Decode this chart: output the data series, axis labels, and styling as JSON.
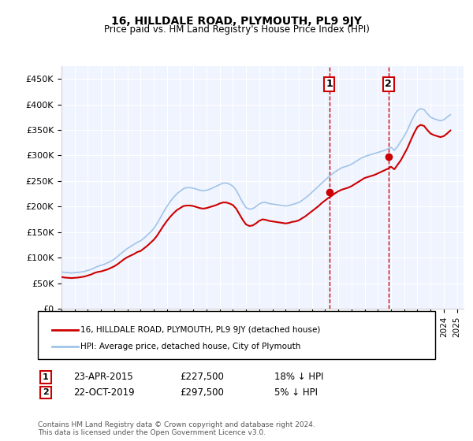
{
  "title": "16, HILLDALE ROAD, PLYMOUTH, PL9 9JY",
  "subtitle": "Price paid vs. HM Land Registry's House Price Index (HPI)",
  "ylabel_ticks": [
    "£0",
    "£50K",
    "£100K",
    "£150K",
    "£200K",
    "£250K",
    "£300K",
    "£350K",
    "£400K",
    "£450K"
  ],
  "ytick_values": [
    0,
    50000,
    100000,
    150000,
    200000,
    250000,
    300000,
    350000,
    400000,
    450000
  ],
  "ylim": [
    0,
    475000
  ],
  "xlim_start": 1995.0,
  "xlim_end": 2025.5,
  "sale1_date": 2015.31,
  "sale1_price": 227500,
  "sale1_label": "1",
  "sale2_date": 2019.81,
  "sale2_price": 297500,
  "sale2_label": "2",
  "hpi_color": "#a0c4e8",
  "sale_color": "#cc0000",
  "sale_dot_color": "#cc0000",
  "background_color": "#f0f4ff",
  "annotation1_text": "1",
  "annotation2_text": "2",
  "legend_sale_label": "16, HILLDALE ROAD, PLYMOUTH, PL9 9JY (detached house)",
  "legend_hpi_label": "HPI: Average price, detached house, City of Plymouth",
  "table_row1": [
    "1",
    "23-APR-2015",
    "£227,500",
    "18% ↓ HPI"
  ],
  "table_row2": [
    "2",
    "22-OCT-2019",
    "£297,500",
    "5% ↓ HPI"
  ],
  "footnote": "Contains HM Land Registry data © Crown copyright and database right 2024.\nThis data is licensed under the Open Government Licence v3.0.",
  "hpi_data_x": [
    1995.0,
    1995.25,
    1995.5,
    1995.75,
    1996.0,
    1996.25,
    1996.5,
    1996.75,
    1997.0,
    1997.25,
    1997.5,
    1997.75,
    1998.0,
    1998.25,
    1998.5,
    1998.75,
    1999.0,
    1999.25,
    1999.5,
    1999.75,
    2000.0,
    2000.25,
    2000.5,
    2000.75,
    2001.0,
    2001.25,
    2001.5,
    2001.75,
    2002.0,
    2002.25,
    2002.5,
    2002.75,
    2003.0,
    2003.25,
    2003.5,
    2003.75,
    2004.0,
    2004.25,
    2004.5,
    2004.75,
    2005.0,
    2005.25,
    2005.5,
    2005.75,
    2006.0,
    2006.25,
    2006.5,
    2006.75,
    2007.0,
    2007.25,
    2007.5,
    2007.75,
    2008.0,
    2008.25,
    2008.5,
    2008.75,
    2009.0,
    2009.25,
    2009.5,
    2009.75,
    2010.0,
    2010.25,
    2010.5,
    2010.75,
    2011.0,
    2011.25,
    2011.5,
    2011.75,
    2012.0,
    2012.25,
    2012.5,
    2012.75,
    2013.0,
    2013.25,
    2013.5,
    2013.75,
    2014.0,
    2014.25,
    2014.5,
    2014.75,
    2015.0,
    2015.25,
    2015.5,
    2015.75,
    2016.0,
    2016.25,
    2016.5,
    2016.75,
    2017.0,
    2017.25,
    2017.5,
    2017.75,
    2018.0,
    2018.25,
    2018.5,
    2018.75,
    2019.0,
    2019.25,
    2019.5,
    2019.75,
    2020.0,
    2020.25,
    2020.5,
    2020.75,
    2021.0,
    2021.25,
    2021.5,
    2021.75,
    2022.0,
    2022.25,
    2022.5,
    2022.75,
    2023.0,
    2023.25,
    2023.5,
    2023.75,
    2024.0,
    2024.25,
    2024.5
  ],
  "hpi_data_y": [
    72000,
    71000,
    70500,
    70000,
    70500,
    71000,
    72000,
    73000,
    75000,
    77000,
    80000,
    83000,
    85000,
    87000,
    90000,
    93000,
    97000,
    102000,
    108000,
    113000,
    118000,
    122000,
    126000,
    130000,
    133000,
    138000,
    144000,
    150000,
    157000,
    167000,
    178000,
    190000,
    200000,
    210000,
    218000,
    225000,
    230000,
    235000,
    237000,
    237000,
    236000,
    234000,
    232000,
    231000,
    232000,
    234000,
    237000,
    240000,
    243000,
    246000,
    246000,
    244000,
    240000,
    232000,
    220000,
    208000,
    198000,
    195000,
    196000,
    200000,
    205000,
    208000,
    208000,
    206000,
    205000,
    204000,
    203000,
    202000,
    201000,
    202000,
    204000,
    206000,
    208000,
    212000,
    217000,
    222000,
    228000,
    234000,
    240000,
    246000,
    252000,
    258000,
    263000,
    268000,
    272000,
    276000,
    278000,
    280000,
    283000,
    287000,
    291000,
    295000,
    298000,
    300000,
    302000,
    304000,
    306000,
    308000,
    310000,
    313000,
    316000,
    310000,
    318000,
    328000,
    338000,
    350000,
    365000,
    378000,
    388000,
    392000,
    390000,
    382000,
    375000,
    372000,
    370000,
    368000,
    370000,
    375000,
    380000
  ],
  "sale_data_x": [
    1995.0,
    1995.25,
    1995.5,
    1995.75,
    1996.0,
    1996.25,
    1996.5,
    1996.75,
    1997.0,
    1997.25,
    1997.5,
    1997.75,
    1998.0,
    1998.25,
    1998.5,
    1998.75,
    1999.0,
    1999.25,
    1999.5,
    1999.75,
    2000.0,
    2000.25,
    2000.5,
    2000.75,
    2001.0,
    2001.25,
    2001.5,
    2001.75,
    2002.0,
    2002.25,
    2002.5,
    2002.75,
    2003.0,
    2003.25,
    2003.5,
    2003.75,
    2004.0,
    2004.25,
    2004.5,
    2004.75,
    2005.0,
    2005.25,
    2005.5,
    2005.75,
    2006.0,
    2006.25,
    2006.5,
    2006.75,
    2007.0,
    2007.25,
    2007.5,
    2007.75,
    2008.0,
    2008.25,
    2008.5,
    2008.75,
    2009.0,
    2009.25,
    2009.5,
    2009.75,
    2010.0,
    2010.25,
    2010.5,
    2010.75,
    2011.0,
    2011.25,
    2011.5,
    2011.75,
    2012.0,
    2012.25,
    2012.5,
    2012.75,
    2013.0,
    2013.25,
    2013.5,
    2013.75,
    2014.0,
    2014.25,
    2014.5,
    2014.75,
    2015.0,
    2015.25,
    2015.5,
    2015.75,
    2016.0,
    2016.25,
    2016.5,
    2016.75,
    2017.0,
    2017.25,
    2017.5,
    2017.75,
    2018.0,
    2018.25,
    2018.5,
    2018.75,
    2019.0,
    2019.25,
    2019.5,
    2019.75,
    2020.0,
    2020.25,
    2020.5,
    2020.75,
    2021.0,
    2021.25,
    2021.5,
    2021.75,
    2022.0,
    2022.25,
    2022.5,
    2022.75,
    2023.0,
    2023.25,
    2023.5,
    2023.75,
    2024.0,
    2024.25,
    2024.5
  ],
  "sale_data_y": [
    62000,
    61000,
    60500,
    60000,
    60500,
    61000,
    62000,
    63000,
    65000,
    67000,
    70000,
    72000,
    73000,
    75000,
    77000,
    80000,
    83000,
    87000,
    92000,
    97000,
    101000,
    104000,
    107000,
    111000,
    113000,
    118000,
    123000,
    129000,
    135000,
    143000,
    153000,
    163000,
    172000,
    180000,
    187000,
    193000,
    197000,
    201000,
    202000,
    202000,
    201000,
    199000,
    197000,
    196000,
    197000,
    199000,
    201000,
    203000,
    206000,
    208000,
    208000,
    206000,
    203000,
    196000,
    185000,
    174000,
    165000,
    162000,
    163000,
    167000,
    172000,
    175000,
    174000,
    172000,
    171000,
    170000,
    169000,
    168000,
    167000,
    168000,
    170000,
    171000,
    173000,
    177000,
    181000,
    186000,
    191000,
    196000,
    201000,
    207000,
    212000,
    217000,
    221000,
    226000,
    230000,
    233000,
    235000,
    237000,
    240000,
    244000,
    248000,
    252000,
    256000,
    258000,
    260000,
    262000,
    265000,
    268000,
    271000,
    274000,
    278000,
    273000,
    282000,
    291000,
    303000,
    315000,
    330000,
    344000,
    356000,
    360000,
    358000,
    350000,
    343000,
    340000,
    338000,
    336000,
    338000,
    343000,
    349000
  ]
}
